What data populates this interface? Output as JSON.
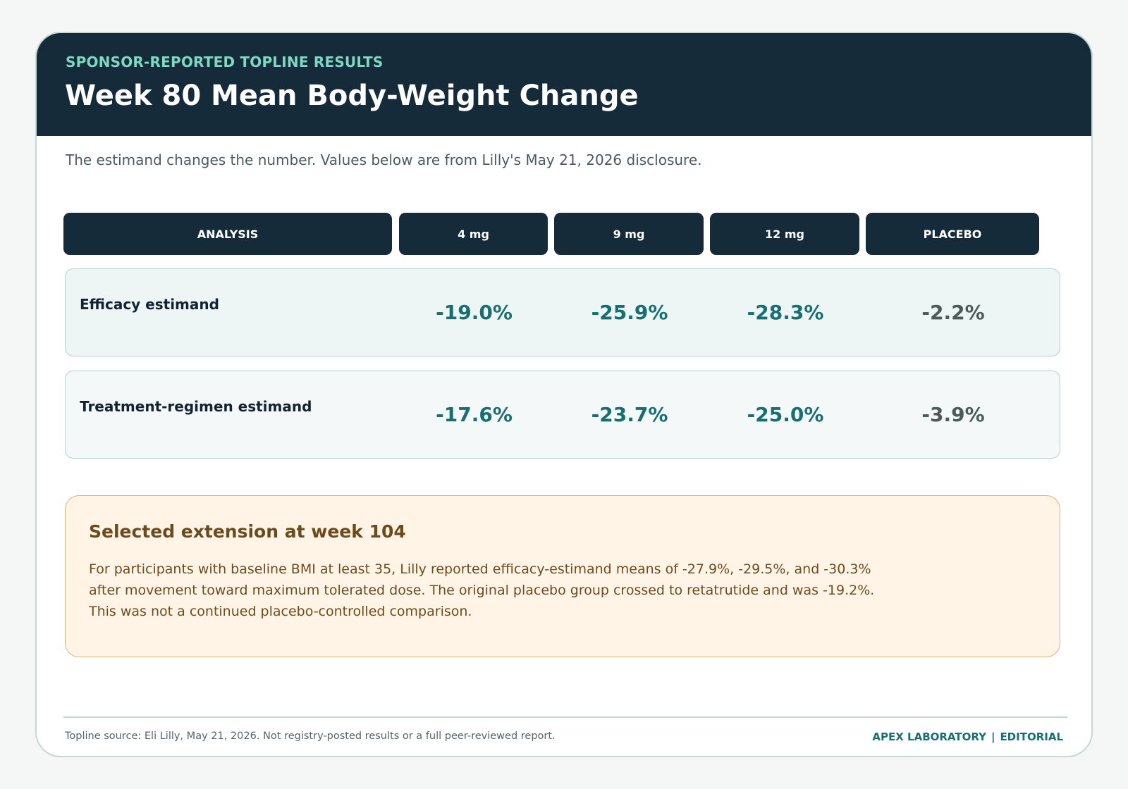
{
  "header": {
    "kicker": "SPONSOR-REPORTED TOPLINE RESULTS",
    "title": "Week 80 Mean Body-Weight Change"
  },
  "subtitle": "The estimand changes the number. Values below are from Lilly's May 21, 2026 disclosure.",
  "table": {
    "columns": [
      "ANALYSIS",
      "4 mg",
      "9 mg",
      "12 mg",
      "PLACEBO"
    ],
    "rows": [
      {
        "label": "Efficacy estimand",
        "values": [
          "-19.0%",
          "-25.9%",
          "-28.3%",
          "-2.2%"
        ]
      },
      {
        "label": "Treatment-regimen estimand",
        "values": [
          "-17.6%",
          "-23.7%",
          "-25.0%",
          "-3.9%"
        ]
      }
    ]
  },
  "callout": {
    "title": "Selected extension at week 104",
    "body": "For participants with baseline BMI at least 35, Lilly reported efficacy-estimand means of -27.9%, -29.5%, and -30.3% after movement toward maximum tolerated dose. The original placebo group crossed to retatrutide and was -19.2%. This was not a continued placebo-controlled comparison."
  },
  "footer": {
    "note": "Topline source: Eli Lilly, May 21, 2026. Not registry-posted results or a full peer-reviewed report.",
    "brand_left": "APEX LABORATORY",
    "separator": "|",
    "brand_right": "EDITORIAL"
  },
  "colors": {
    "header_bg": "#162b3a",
    "kicker": "#7fd8c4",
    "value_teal": "#186f72",
    "placebo_gray": "#4c5a59",
    "callout_bg": "#fff4e6",
    "callout_border": "#e0b46e"
  }
}
